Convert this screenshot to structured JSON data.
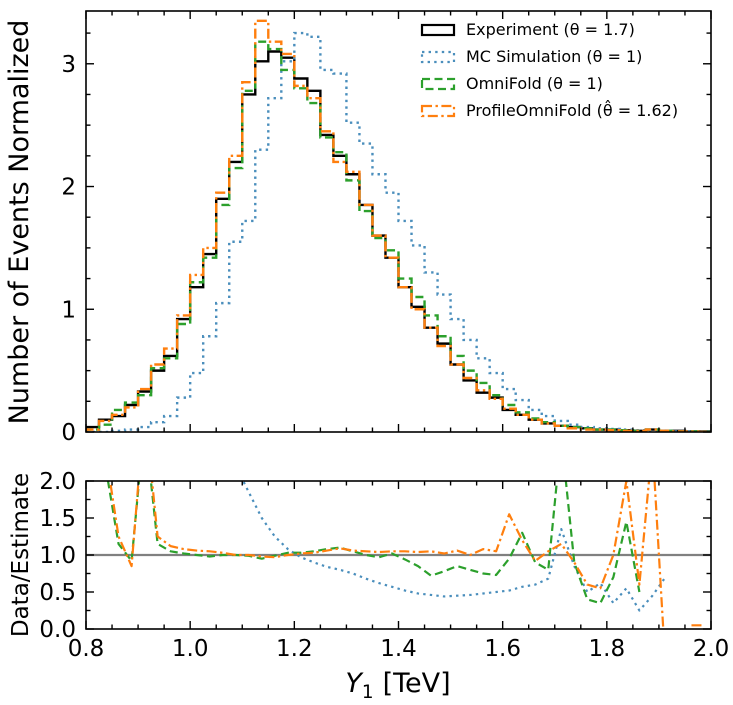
{
  "figure": {
    "top_ylabel": "Number of Events Normalized",
    "bottom_ylabel": "Data/Estimate",
    "xlabel_var": "Y",
    "xlabel_sub": "1",
    "xlabel_unit": "[TeV]"
  },
  "chart_data": [
    {
      "type": "line",
      "style": "step-histogram",
      "title": "",
      "xlabel": "Y1 [TeV]",
      "ylabel": "Number of Events Normalized",
      "xlim": [
        0.8,
        2.0
      ],
      "ylim": [
        0,
        3.43
      ],
      "bin_start": 0.8,
      "bin_width": 0.025,
      "n_bins": 48,
      "xticks": [
        0.8,
        1.0,
        1.2,
        1.4,
        1.6,
        1.8,
        2.0
      ],
      "xtick_labels": [],
      "yticks": [
        0,
        1,
        2,
        3
      ],
      "ytick_labels": [
        "0",
        "1",
        "2",
        "3"
      ],
      "grid": false,
      "legend_position": "upper right",
      "series": [
        {
          "name": "Experiment (θ = 1.7)",
          "color": "#000000",
          "linestyle": "solid",
          "values": [
            0.04,
            0.1,
            0.13,
            0.22,
            0.33,
            0.5,
            0.62,
            0.92,
            1.18,
            1.45,
            1.9,
            2.2,
            2.75,
            3.02,
            3.1,
            3.05,
            2.88,
            2.78,
            2.42,
            2.25,
            2.1,
            1.85,
            1.6,
            1.42,
            1.18,
            1.02,
            0.85,
            0.72,
            0.55,
            0.42,
            0.32,
            0.28,
            0.18,
            0.14,
            0.1,
            0.07,
            0.05,
            0.04,
            0.03,
            0.02,
            0.02,
            0.015,
            0.01,
            0.02,
            0.01,
            0.01,
            0.005,
            0.005
          ]
        },
        {
          "name": "MC Simulation (θ = 1)",
          "color": "#4a8ebc",
          "linestyle": "dotted",
          "values": [
            0,
            0,
            0.01,
            0.02,
            0.04,
            0.08,
            0.13,
            0.28,
            0.48,
            0.78,
            1.05,
            1.55,
            1.72,
            2.3,
            2.72,
            3.02,
            3.25,
            3.22,
            2.95,
            2.92,
            2.52,
            2.35,
            2.1,
            1.95,
            1.72,
            1.52,
            1.3,
            1.12,
            0.92,
            0.75,
            0.6,
            0.48,
            0.35,
            0.26,
            0.18,
            0.13,
            0.09,
            0.06,
            0.04,
            0.03,
            0.025,
            0.02,
            0.015,
            0.01,
            0.01,
            0.005,
            0.005,
            0
          ]
        },
        {
          "name": "OmniFold (θ = 1)",
          "color": "#2ca02c",
          "linestyle": "dashed",
          "values": [
            0.02,
            0.06,
            0.18,
            0.24,
            0.3,
            0.52,
            0.6,
            0.88,
            1.22,
            1.42,
            1.85,
            2.15,
            2.78,
            3.18,
            3.12,
            2.95,
            2.8,
            2.68,
            2.4,
            2.28,
            2.05,
            1.8,
            1.58,
            1.48,
            1.25,
            1.1,
            0.95,
            0.78,
            0.62,
            0.5,
            0.4,
            0.3,
            0.22,
            0.16,
            0.11,
            0.08,
            0.05,
            0.04,
            0.03,
            0.02,
            0.02,
            0.015,
            0.01,
            0.02,
            0.01,
            0.005,
            0.005,
            0
          ]
        },
        {
          "name": "ProfileOmniFold (θ̂ = 1.62)",
          "color": "#ff7f0e",
          "linestyle": "dashdot",
          "values": [
            0.02,
            0.09,
            0.14,
            0.2,
            0.35,
            0.55,
            0.68,
            0.95,
            1.28,
            1.5,
            1.95,
            2.25,
            2.85,
            3.35,
            3.18,
            3.08,
            2.82,
            2.72,
            2.45,
            2.2,
            2.12,
            1.85,
            1.6,
            1.42,
            1.18,
            1.0,
            0.85,
            0.7,
            0.55,
            0.44,
            0.34,
            0.27,
            0.19,
            0.14,
            0.1,
            0.07,
            0.05,
            0.03,
            0.02,
            0.02,
            0.015,
            0.01,
            0.01,
            0.02,
            0.01,
            0.005,
            0.003,
            0
          ]
        }
      ]
    },
    {
      "type": "line",
      "style": "ratio",
      "title": "",
      "xlabel": "Y1 [TeV]",
      "ylabel": "Data/Estimate",
      "xlim": [
        0.8,
        2.0
      ],
      "ylim": [
        0,
        2
      ],
      "bin_start": 0.8,
      "bin_width": 0.025,
      "n_bins": 48,
      "xticks": [
        0.8,
        1.0,
        1.2,
        1.4,
        1.6,
        1.8,
        2.0
      ],
      "xtick_labels": [
        "0.8",
        "1.0",
        "1.2",
        "1.4",
        "1.6",
        "1.8",
        "2.0"
      ],
      "yticks": [
        0,
        0.5,
        1,
        1.5,
        2
      ],
      "ytick_labels": [
        "0.0",
        "0.5",
        "1.0",
        "1.5",
        "2.0"
      ],
      "grid": false,
      "reference_line": 1.0,
      "reference_color": "#808080",
      "series": [
        {
          "name": "MC Simulation",
          "color": "#4a8ebc",
          "linestyle": "dotted",
          "values": [
            null,
            null,
            6,
            5.5,
            5,
            4.5,
            4,
            3.5,
            3.2,
            2.9,
            2.6,
            2.2,
            1.85,
            1.5,
            1.25,
            1.08,
            0.97,
            0.9,
            0.84,
            0.8,
            0.75,
            0.68,
            0.62,
            0.57,
            0.52,
            0.48,
            0.46,
            0.44,
            0.45,
            0.46,
            0.48,
            0.5,
            0.52,
            0.57,
            0.6,
            0.68,
            1.35,
            0.85,
            0.5,
            0.62,
            0.35,
            0.55,
            0.25,
            0.45,
            0.7,
            null,
            null,
            null
          ]
        },
        {
          "name": "OmniFold",
          "color": "#2ca02c",
          "linestyle": "dashed",
          "values": [
            3,
            2.2,
            1.15,
            0.92,
            2.8,
            1.15,
            1.05,
            1.02,
            1.0,
            0.98,
            1.0,
            1.0,
            0.99,
            0.95,
            0.99,
            1.03,
            1.03,
            1.05,
            1.08,
            1.1,
            1.05,
            1.0,
            0.97,
            1.02,
            0.94,
            0.85,
            0.72,
            0.78,
            0.85,
            0.8,
            0.75,
            0.73,
            0.95,
            1.3,
            0.9,
            0.8,
            2.6,
            0.9,
            0.4,
            0.35,
            0.7,
            1.45,
            0.5,
            null,
            null,
            null,
            null,
            null
          ]
        },
        {
          "name": "ProfileOmniFold",
          "color": "#ff7f0e",
          "linestyle": "dashdot",
          "values": [
            3.5,
            2.4,
            1.25,
            0.85,
            3.0,
            1.25,
            1.12,
            1.08,
            1.06,
            1.05,
            1.03,
            1.0,
            1.0,
            0.98,
            0.97,
            1.0,
            1.02,
            1.03,
            1.06,
            1.09,
            1.06,
            1.05,
            1.04,
            1.05,
            1.05,
            1.04,
            1.05,
            1.02,
            1.06,
            1.0,
            1.08,
            1.05,
            1.55,
            1.2,
            0.92,
            1.05,
            1.15,
            0.9,
            0.6,
            0.55,
            1.0,
            2.0,
            0.6,
            2.5,
            -0.5,
            null,
            0.05,
            0.05
          ]
        }
      ]
    }
  ]
}
